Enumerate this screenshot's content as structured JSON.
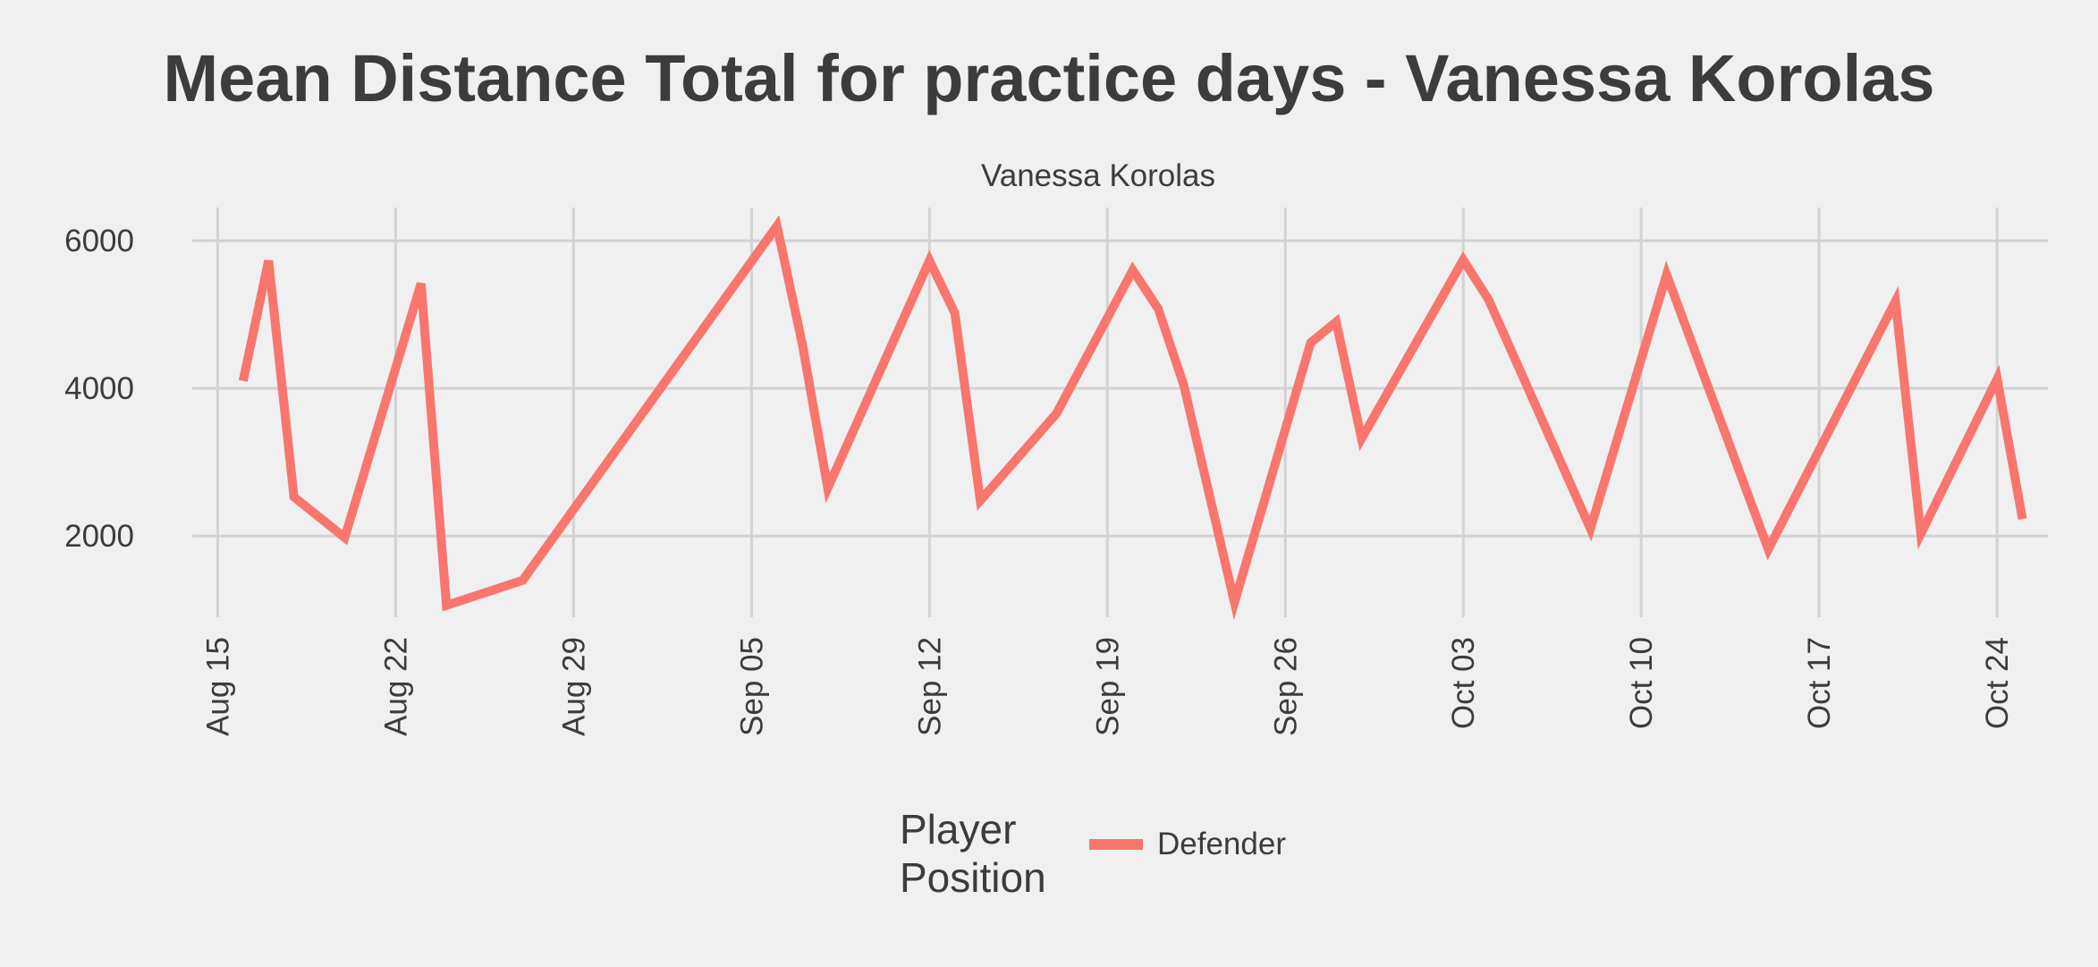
{
  "chart_data": {
    "type": "line",
    "title": "Mean Distance Total for practice days -  Vanessa Korolas",
    "facet_label": "Vanessa Korolas",
    "xlabel": "",
    "ylabel": "",
    "x_ticks": [
      "Aug 15",
      "Aug 22",
      "Aug 29",
      "Sep 05",
      "Sep 12",
      "Sep 19",
      "Sep 26",
      "Oct 03",
      "Oct 10",
      "Oct 17",
      "Oct 24"
    ],
    "y_ticks": [
      2000,
      4000,
      6000
    ],
    "ylim": [
      900,
      6450
    ],
    "xlim": [
      "2016-08-14",
      "2016-10-26"
    ],
    "legend": {
      "title": "Player Position",
      "position": "bottom",
      "entries": [
        "Defender"
      ]
    },
    "series": [
      {
        "name": "Defender",
        "color": "#f8766d",
        "points": [
          [
            "2016-08-16",
            4100
          ],
          [
            "2016-08-17",
            5730
          ],
          [
            "2016-08-18",
            2530
          ],
          [
            "2016-08-20",
            1980
          ],
          [
            "2016-08-23",
            5420
          ],
          [
            "2016-08-24",
            1060
          ],
          [
            "2016-08-27",
            1400
          ],
          [
            "2016-09-06",
            6200
          ],
          [
            "2016-09-07",
            4600
          ],
          [
            "2016-09-08",
            2650
          ],
          [
            "2016-09-12",
            5730
          ],
          [
            "2016-09-13",
            5020
          ],
          [
            "2016-09-14",
            2480
          ],
          [
            "2016-09-17",
            3660
          ],
          [
            "2016-09-20",
            5600
          ],
          [
            "2016-09-21",
            5080
          ],
          [
            "2016-09-22",
            4050
          ],
          [
            "2016-09-24",
            1100
          ],
          [
            "2016-09-27",
            4620
          ],
          [
            "2016-09-28",
            4900
          ],
          [
            "2016-09-29",
            3320
          ],
          [
            "2016-10-03",
            5740
          ],
          [
            "2016-10-04",
            5200
          ],
          [
            "2016-10-08",
            2100
          ],
          [
            "2016-10-11",
            5540
          ],
          [
            "2016-10-15",
            1820
          ],
          [
            "2016-10-20",
            5180
          ],
          [
            "2016-10-21",
            2030
          ],
          [
            "2016-10-24",
            4130
          ],
          [
            "2016-10-25",
            2230
          ]
        ]
      }
    ]
  }
}
